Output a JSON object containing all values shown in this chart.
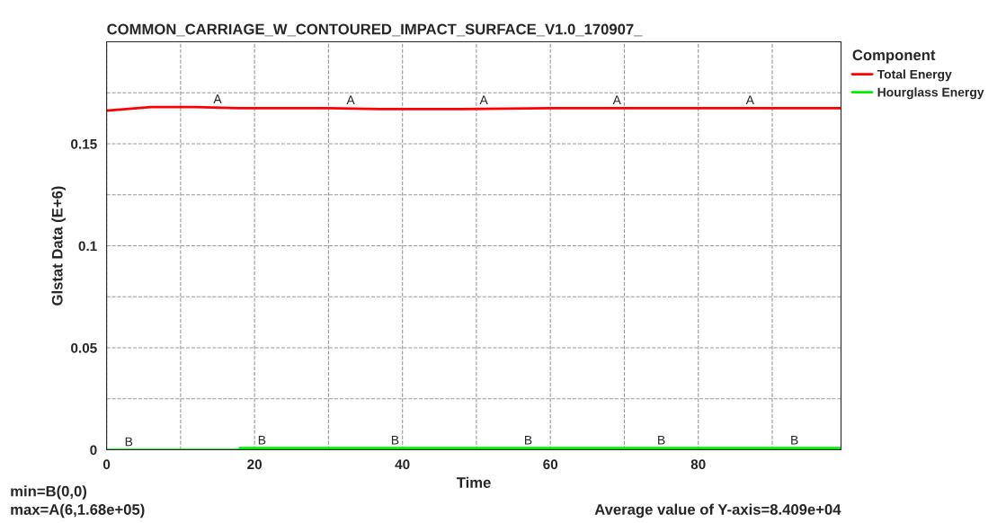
{
  "chart_data": {
    "type": "line",
    "title": "COMMON_CARRIAGE_W_CONTOURED_IMPACT_SURFACE_V1.0_170907_",
    "xlabel": "Time",
    "ylabel": "Glstat Data (E+6)",
    "legend_title": "Component",
    "series": [
      {
        "name": "Total Energy",
        "color": "#ff0000",
        "x": [
          0,
          3,
          6,
          12,
          18,
          30,
          37,
          48,
          60,
          80,
          99.3
        ],
        "values": [
          0.1663,
          0.1672,
          0.168,
          0.168,
          0.1675,
          0.1675,
          0.167,
          0.167,
          0.1675,
          0.1675,
          0.1675
        ]
      },
      {
        "name": "Hourglass Energy",
        "color": "#00ee00",
        "x": [
          0,
          18,
          18.01,
          40,
          60,
          80,
          99.3
        ],
        "values": [
          0,
          0,
          0.0008,
          0.0008,
          0.0008,
          0.0008,
          0.0008
        ]
      }
    ],
    "annotations": [
      {
        "text": "A",
        "x": 15,
        "y": 0.168
      },
      {
        "text": "A",
        "x": 33,
        "y": 0.1675
      },
      {
        "text": "A",
        "x": 51,
        "y": 0.1675
      },
      {
        "text": "A",
        "x": 69,
        "y": 0.1675
      },
      {
        "text": "A",
        "x": 87,
        "y": 0.1675
      },
      {
        "text": "B",
        "x": 3,
        "y": 0
      },
      {
        "text": "B",
        "x": 21,
        "y": 0.0008
      },
      {
        "text": "B",
        "x": 39,
        "y": 0.0008
      },
      {
        "text": "B",
        "x": 57,
        "y": 0.0008
      },
      {
        "text": "B",
        "x": 75,
        "y": 0.0008
      },
      {
        "text": "B",
        "x": 93,
        "y": 0.0008
      },
      "min=B(0,0)",
      "max=A(6,1.68e+05)",
      "Average value of Y-axis=8.409e+04"
    ],
    "xlim": [
      0,
      99.3
    ],
    "xticks": [
      0,
      {
        "value": 10,
        "label": null
      },
      20,
      {
        "value": 30,
        "label": null
      },
      40,
      {
        "value": 50,
        "label": null
      },
      60,
      {
        "value": 70,
        "label": null
      },
      80,
      {
        "value": 90,
        "label": null
      }
    ],
    "ylim": [
      0,
      0.2
    ],
    "yticks": [
      0,
      {
        "value": 0.025,
        "label": null
      },
      0.05,
      {
        "value": 0.075,
        "label": null
      },
      0.1,
      {
        "value": 0.125,
        "label": null
      },
      0.15,
      {
        "value": 0.175,
        "label": null
      }
    ],
    "grid": true,
    "legend": "top right",
    "line_style": "solid",
    "marker": "none"
  }
}
